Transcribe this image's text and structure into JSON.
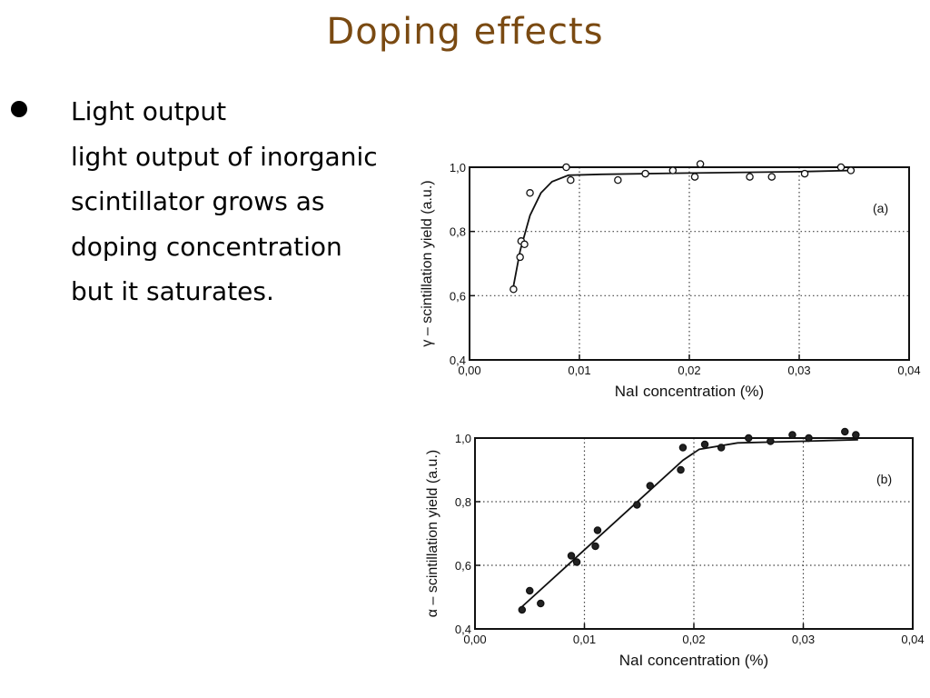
{
  "slide": {
    "title": "Doping effects",
    "bullet": {
      "heading": "Light output",
      "lines": [
        "light output of inorganic",
        "scintillator grows as",
        "doping concentration",
        "but it saturates."
      ]
    }
  },
  "chart_data": [
    {
      "type": "scatter",
      "panel_label": "(a)",
      "xlabel": "NaI concentration (%)",
      "ylabel": "γ – scintillation yield (a.u.)",
      "xlim": [
        0,
        0.04
      ],
      "ylim": [
        0.4,
        1.0
      ],
      "x_ticks": [
        "0,00",
        "0,01",
        "0,02",
        "0,03",
        "0,04"
      ],
      "y_ticks": [
        "0,4",
        "0,6",
        "0,8",
        "1,0"
      ],
      "grid": true,
      "marker": "open-circle",
      "points": [
        [
          0.004,
          0.62
        ],
        [
          0.0046,
          0.72
        ],
        [
          0.0047,
          0.77
        ],
        [
          0.005,
          0.76
        ],
        [
          0.0055,
          0.92
        ],
        [
          0.0088,
          1.0
        ],
        [
          0.0092,
          0.96
        ],
        [
          0.0135,
          0.96
        ],
        [
          0.016,
          0.98
        ],
        [
          0.0185,
          0.99
        ],
        [
          0.0205,
          0.97
        ],
        [
          0.021,
          1.01
        ],
        [
          0.0255,
          0.97
        ],
        [
          0.0275,
          0.97
        ],
        [
          0.0305,
          0.98
        ],
        [
          0.0338,
          1.0
        ],
        [
          0.0347,
          0.99
        ]
      ],
      "fit": [
        [
          0.004,
          0.63
        ],
        [
          0.0046,
          0.74
        ],
        [
          0.0055,
          0.85
        ],
        [
          0.0065,
          0.92
        ],
        [
          0.0075,
          0.955
        ],
        [
          0.009,
          0.975
        ],
        [
          0.012,
          0.978
        ],
        [
          0.02,
          0.982
        ],
        [
          0.03,
          0.986
        ],
        [
          0.035,
          0.99
        ]
      ]
    },
    {
      "type": "scatter",
      "panel_label": "(b)",
      "xlabel": "NaI concentration (%)",
      "ylabel": "α – scintillation yield (a.u.)",
      "xlim": [
        0,
        0.04
      ],
      "ylim": [
        0.4,
        1.0
      ],
      "x_ticks": [
        "0,00",
        "0,01",
        "0,02",
        "0,03",
        "0,04"
      ],
      "y_ticks": [
        "0,4",
        "0,6",
        "0,8",
        "1,0"
      ],
      "grid": true,
      "marker": "filled-circle",
      "points": [
        [
          0.0043,
          0.46
        ],
        [
          0.005,
          0.52
        ],
        [
          0.006,
          0.48
        ],
        [
          0.0088,
          0.63
        ],
        [
          0.0093,
          0.61
        ],
        [
          0.011,
          0.66
        ],
        [
          0.0112,
          0.71
        ],
        [
          0.0148,
          0.79
        ],
        [
          0.016,
          0.85
        ],
        [
          0.0188,
          0.9
        ],
        [
          0.019,
          0.97
        ],
        [
          0.021,
          0.98
        ],
        [
          0.0225,
          0.97
        ],
        [
          0.025,
          1.0
        ],
        [
          0.027,
          0.99
        ],
        [
          0.029,
          1.01
        ],
        [
          0.0305,
          1.0
        ],
        [
          0.0338,
          1.02
        ],
        [
          0.0348,
          1.01
        ]
      ],
      "fit": [
        [
          0.0043,
          0.47
        ],
        [
          0.019,
          0.93
        ],
        [
          0.0205,
          0.965
        ],
        [
          0.024,
          0.985
        ],
        [
          0.03,
          0.99
        ],
        [
          0.035,
          0.995
        ]
      ]
    }
  ]
}
